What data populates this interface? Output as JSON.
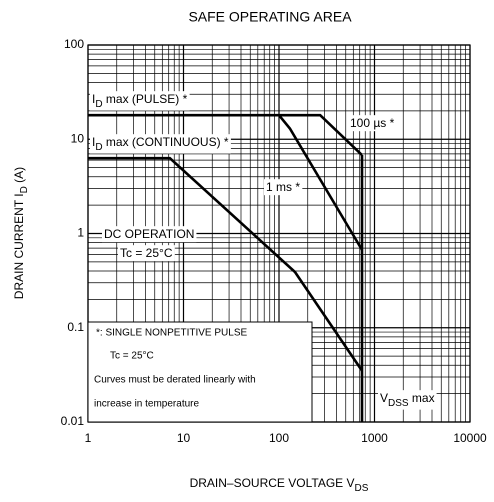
{
  "chart_data": {
    "type": "line",
    "title": "SAFE OPERATING AREA",
    "x_label": {
      "label": "DRAIN–SOURCE VOLTAGE  V",
      "sub": "DS"
    },
    "y_label": {
      "label": "DRAIN CURRENT  I",
      "sub": "D",
      "rest": "  (A)"
    },
    "log_x": true,
    "log_y": true,
    "grid": "minor",
    "color": "#000000",
    "xlim": [
      1,
      10000
    ],
    "xticks": [
      1,
      10,
      100,
      1000,
      10000
    ],
    "ylim": [
      0.01,
      100
    ],
    "yticks": [
      0.01,
      0.1,
      1,
      10,
      100
    ],
    "series": [
      {
        "x": [
          1,
          270,
          740
        ],
        "values": [
          18,
          18,
          6.8
        ]
      },
      {
        "x": [
          100,
          130,
          740
        ],
        "values": [
          18,
          13,
          0.67
        ]
      },
      {
        "x": [
          1,
          7.2,
          147,
          740
        ],
        "values": [
          6.3,
          6.3,
          0.39,
          0.035
        ]
      },
      {
        "x": [
          740,
          740
        ],
        "values": [
          6.8,
          0.01
        ]
      }
    ],
    "annotations": [
      {
        "label": "I",
        "sub": "D",
        "rest": " max (PULSE) *"
      },
      {
        "label": "I",
        "sub": "D",
        "rest": " max (CONTINUOUS) *"
      },
      {
        "label": "100 µs *"
      },
      {
        "label": "1 ms *"
      },
      {
        "label": "DC OPERATION"
      },
      {
        "label": "Tc = 25°C"
      },
      {
        "label": "V",
        "sub": "DSS",
        "rest": " max"
      }
    ],
    "note": [
      "*:  SINGLE NONPETITIVE PULSE",
      "Tc = 25°C",
      "Curves must be derated linearly with",
      "increase in temperature"
    ]
  }
}
